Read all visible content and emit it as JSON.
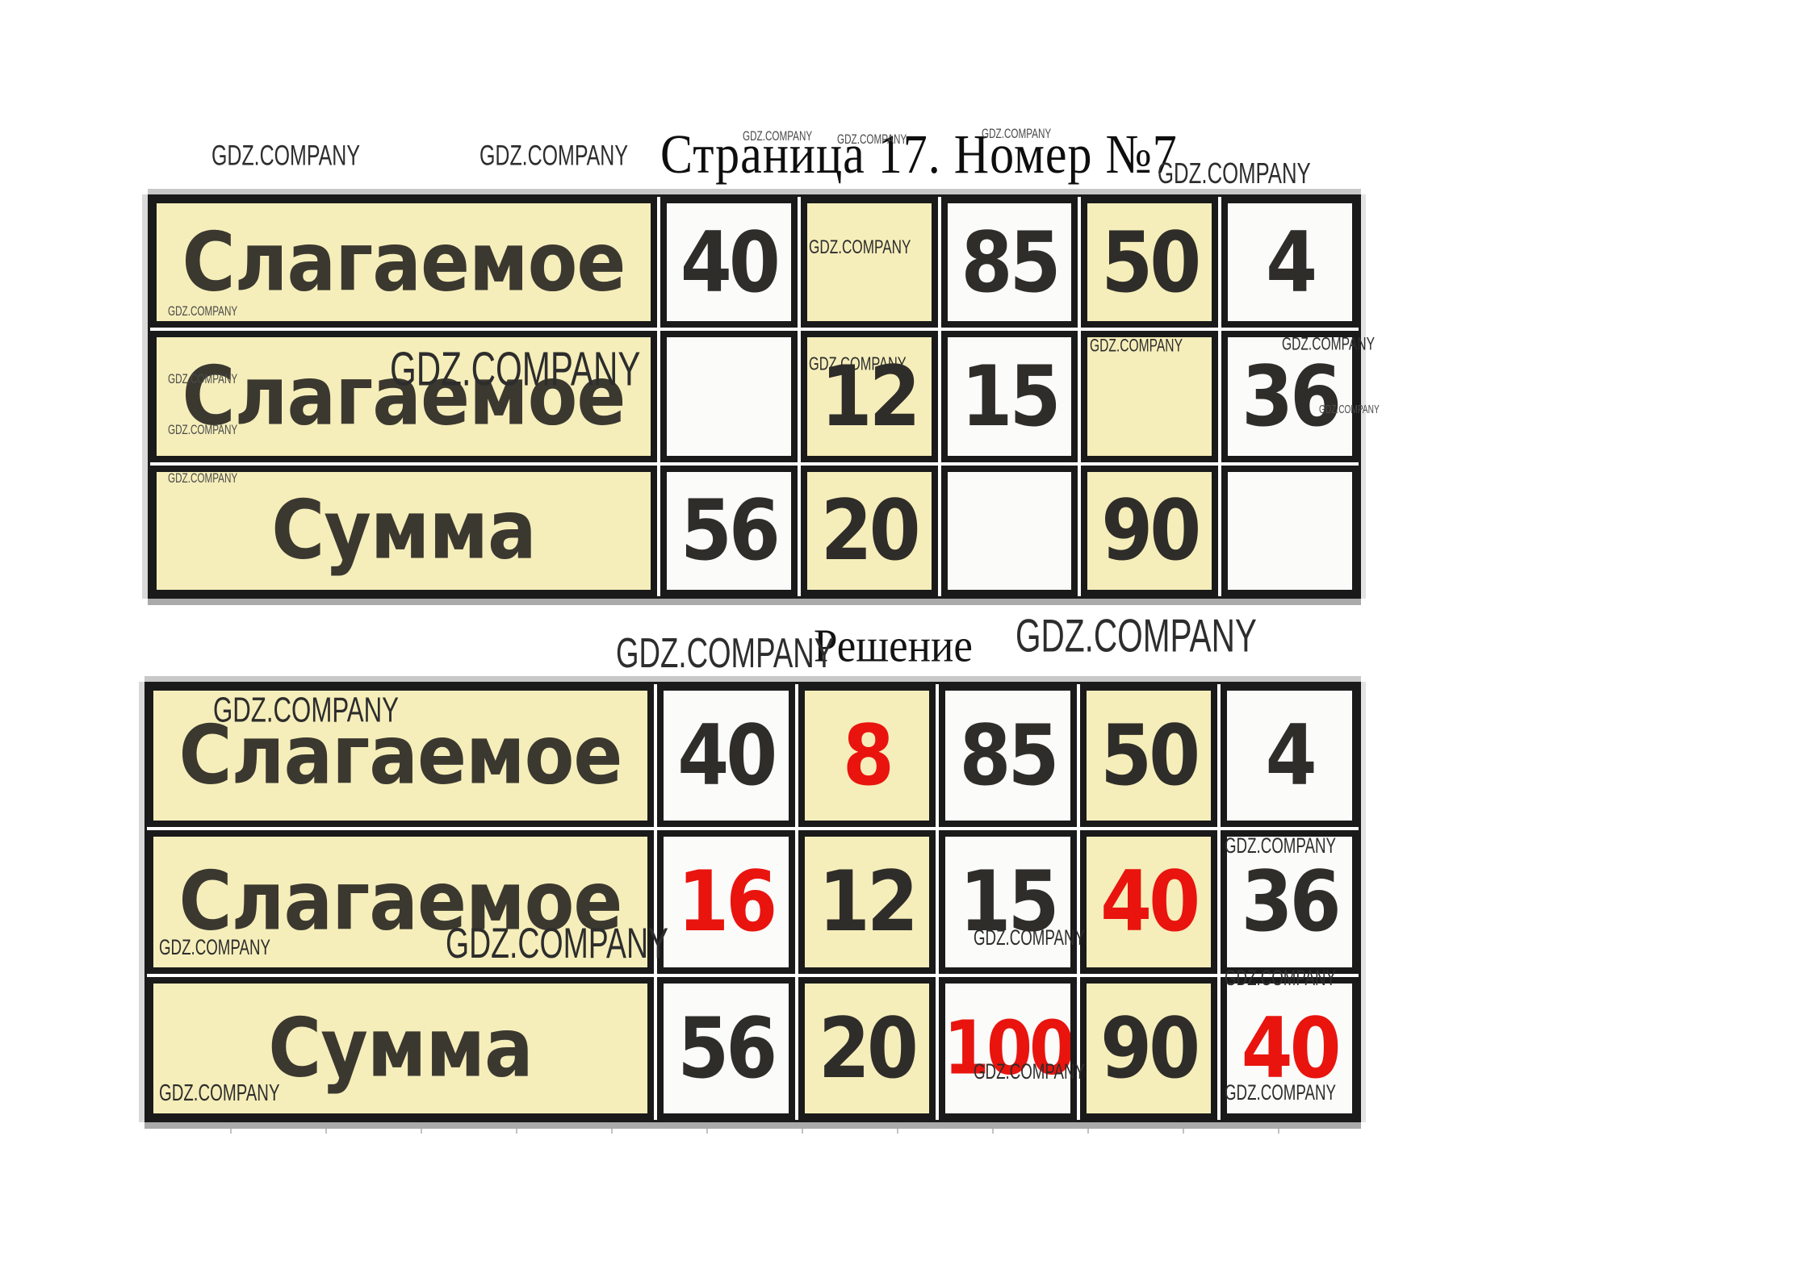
{
  "header": {
    "title": "Страница 17. Номер №7"
  },
  "solution": {
    "heading": "Решение"
  },
  "watermark": {
    "text": "GDZ.COMPANY"
  },
  "colors": {
    "cell_yellow": "#F6EEBA",
    "cell_white": "#FBFBFA",
    "border_black": "#1A1A1A",
    "number_dark": "#2F2D29",
    "answer_red": "#E9140E"
  },
  "problem_table": {
    "rows": [
      {
        "label": "Слагаемое",
        "values": [
          "40",
          "",
          "85",
          "50",
          "4"
        ]
      },
      {
        "label": "Слагаемое",
        "values": [
          "",
          "12",
          "15",
          "",
          "36"
        ]
      },
      {
        "label": "Сумма",
        "values": [
          "56",
          "20",
          "",
          "90",
          ""
        ]
      }
    ]
  },
  "solution_table": {
    "rows": [
      {
        "label": "Слагаемое",
        "values": [
          "40",
          "8",
          "85",
          "50",
          "4"
        ]
      },
      {
        "label": "Слагаемое",
        "values": [
          "16",
          "12",
          "15",
          "40",
          "36"
        ]
      },
      {
        "label": "Сумма",
        "values": [
          "56",
          "20",
          "100",
          "90",
          "40"
        ]
      }
    ]
  }
}
